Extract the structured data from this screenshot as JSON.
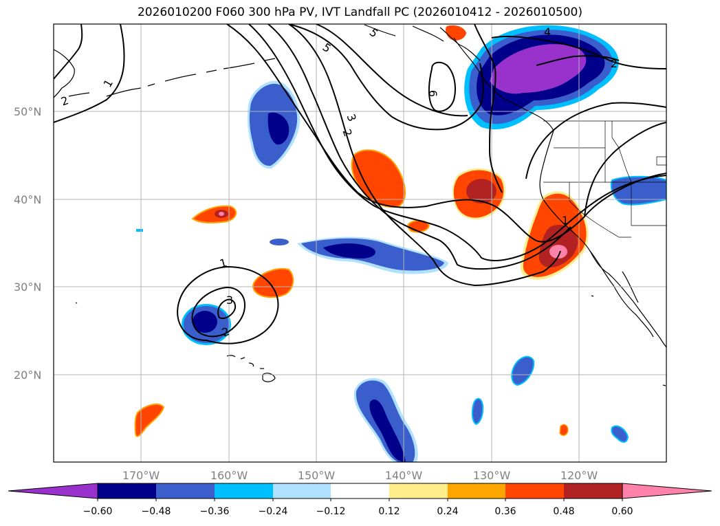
{
  "title": "2026010200 F060 300 hPa PV, IVT Landfall PC (2026010412 - 2026010500)",
  "map": {
    "lon_labels": [
      "170°W",
      "160°W",
      "150°W",
      "140°W",
      "130°W",
      "120°W"
    ],
    "lat_labels": [
      "50°N",
      "40°N",
      "30°N",
      "20°N"
    ],
    "lon_range_deg": [
      -180,
      -110
    ],
    "lat_range_deg": [
      10,
      60
    ],
    "contour_labels": [
      "2",
      "1",
      "5",
      "3",
      "2",
      "5",
      "6",
      "4",
      "2",
      "1",
      "1",
      "3",
      "2"
    ]
  },
  "colorbar": {
    "tick_labels": [
      "−0.60",
      "−0.48",
      "−0.36",
      "−0.24",
      "−0.12",
      "0.12",
      "0.24",
      "0.36",
      "0.48",
      "0.60"
    ],
    "colors": [
      "#9932cc",
      "#00008b",
      "#3a5fcd",
      "#00bfff",
      "#b0e2ff",
      "#ffffff",
      "#ffec8b",
      "#ffa500",
      "#ff4500",
      "#b22222",
      "#ff82ab"
    ]
  },
  "palette": {
    "lightpink": "#ff82ab",
    "firebrick": "#b22222",
    "orangered": "#ff4500",
    "orange": "#ffa500",
    "lightyellow": "#ffec8b",
    "purple": "#9932cc",
    "navy": "#00008b",
    "royal": "#3a5fcd",
    "sky": "#00bfff",
    "paleblue": "#b0e2ff",
    "grid": "#b3b3b3",
    "tick": "#808080"
  }
}
